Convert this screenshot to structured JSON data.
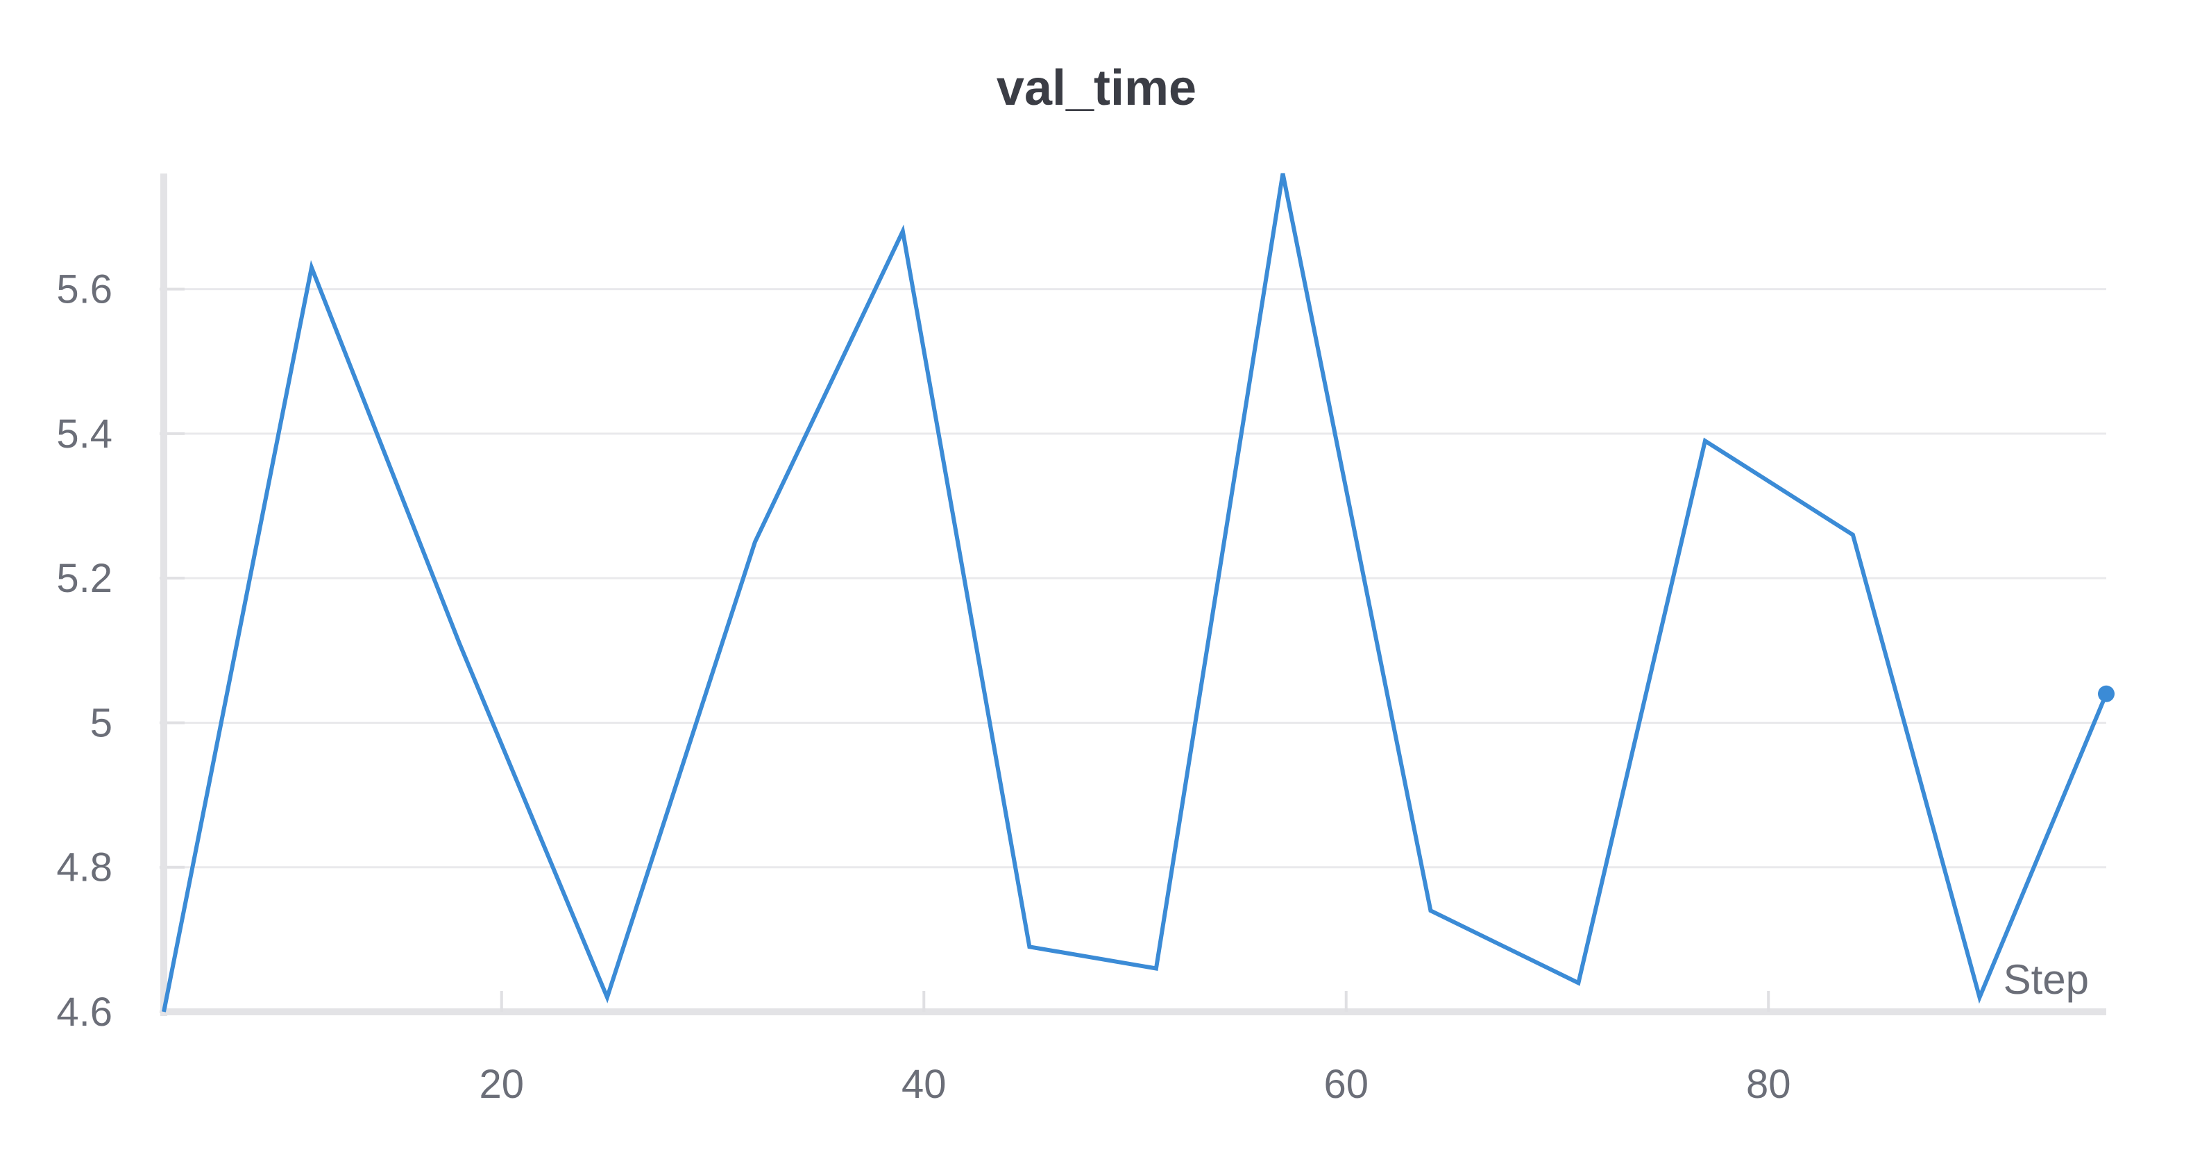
{
  "chart_data": {
    "type": "line",
    "title": "val_time",
    "xlabel": "Step",
    "ylabel": "",
    "xlim": [
      4,
      96
    ],
    "ylim": [
      4.6,
      5.76
    ],
    "xticks": [
      20,
      40,
      60,
      80
    ],
    "yticks": [
      4.6,
      4.8,
      5,
      5.2,
      5.4,
      5.6
    ],
    "ytick_labels": [
      "4.6",
      "4.8",
      "5",
      "5.2",
      "5.4",
      "5.6"
    ],
    "xtick_labels": [
      "20",
      "40",
      "60",
      "80"
    ],
    "grid": true,
    "line_color": "#3b8bd6",
    "series": [
      {
        "x": [
          4,
          11,
          18,
          25,
          32,
          39,
          45,
          51,
          57,
          64,
          71,
          77,
          84,
          90,
          96
        ],
        "values": [
          4.6,
          5.63,
          5.11,
          4.62,
          5.25,
          5.68,
          4.69,
          4.66,
          5.76,
          4.74,
          4.64,
          5.39,
          5.26,
          4.62,
          5.04
        ]
      }
    ]
  }
}
